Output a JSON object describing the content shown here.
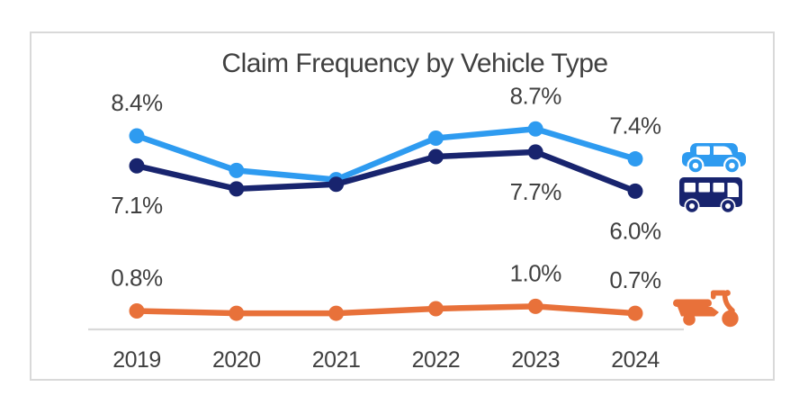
{
  "chart_data": {
    "type": "line",
    "title": "Claim Frequency by Vehicle Type",
    "xlabel": "",
    "ylabel": "",
    "x": [
      "2019",
      "2020",
      "2021",
      "2022",
      "2023",
      "2024"
    ],
    "ylim": [
      0,
      10.5
    ],
    "grid": false,
    "y_axis_shown": false,
    "legend_position": "icons-right-of-lines",
    "colors": {
      "title_text": "#404040",
      "label_text": "#404040",
      "axis_line": "#D9D9D9",
      "card_border": "#D9D9D9",
      "background": "#FFFFFF"
    },
    "series": [
      {
        "name": "Car",
        "icon": "car-icon",
        "color": "#2E9BF0",
        "values": [
          8.4,
          6.9,
          6.5,
          8.3,
          8.7,
          7.4
        ],
        "data_labels": [
          "8.4%",
          null,
          null,
          null,
          "8.7%",
          "7.4%"
        ],
        "label_position": "above"
      },
      {
        "name": "Bus",
        "icon": "bus-icon",
        "color": "#18246E",
        "values": [
          7.1,
          6.1,
          6.3,
          7.5,
          7.7,
          6.0
        ],
        "data_labels": [
          "7.1%",
          null,
          null,
          null,
          "7.7%",
          "6.0%"
        ],
        "label_position": "below"
      },
      {
        "name": "Scooter",
        "icon": "scooter-icon",
        "color": "#E8713A",
        "values": [
          0.8,
          0.7,
          0.7,
          0.9,
          1.0,
          0.7
        ],
        "data_labels": [
          "0.8%",
          null,
          null,
          null,
          "1.0%",
          "0.7%"
        ],
        "label_position": "above"
      }
    ]
  }
}
